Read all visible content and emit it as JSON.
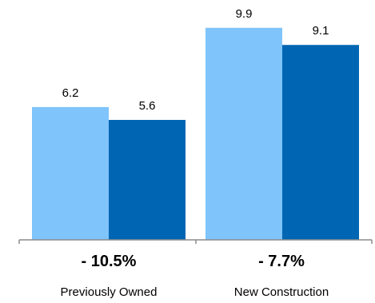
{
  "chart_data": {
    "type": "bar",
    "categories": [
      "Previously Owned",
      "New Construction"
    ],
    "series": [
      {
        "values": [
          6.2,
          9.9
        ],
        "color": "#7fc4fb"
      },
      {
        "values": [
          5.6,
          9.1
        ],
        "color": "#0066b3"
      }
    ],
    "changes": [
      "- 10.5%",
      "- 7.7%"
    ],
    "ylim": [
      0,
      10.9
    ],
    "grid": false,
    "legend": "none"
  }
}
